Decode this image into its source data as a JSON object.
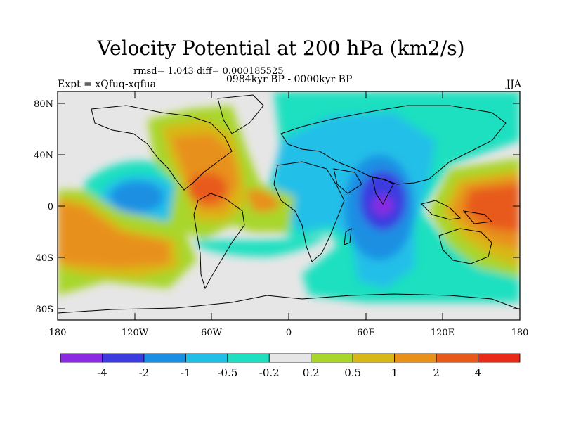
{
  "title": "Velocity Potential at 200 hPa (km2/s)",
  "stats_line": "rmsd= 1.043 diff= 0.000185525",
  "experiment": "Expt = xQfuq-xqfua",
  "period": "0984kyr BP - 0000kyr BP",
  "season": "JJA",
  "map": {
    "lon_range": [
      -180,
      180
    ],
    "lat_range": [
      -90,
      90
    ],
    "y_ticks": [
      "80N",
      "40N",
      "0",
      "40S",
      "80S"
    ],
    "x_ticks": [
      "180",
      "120W",
      "60W",
      "0",
      "60E",
      "120E",
      "180"
    ]
  },
  "colorbar": {
    "colors": [
      "#8a2be2",
      "#3b3be0",
      "#1a8fe3",
      "#20bfe8",
      "#1ee0c0",
      "#e6e6e6",
      "#a8d62a",
      "#d8b818",
      "#e8901a",
      "#e85a1a",
      "#e82a18"
    ],
    "labels": [
      "-4",
      "-2",
      "-1",
      "-0.5",
      "-0.2",
      "0.2",
      "0.5",
      "1",
      "2",
      "4"
    ]
  }
}
